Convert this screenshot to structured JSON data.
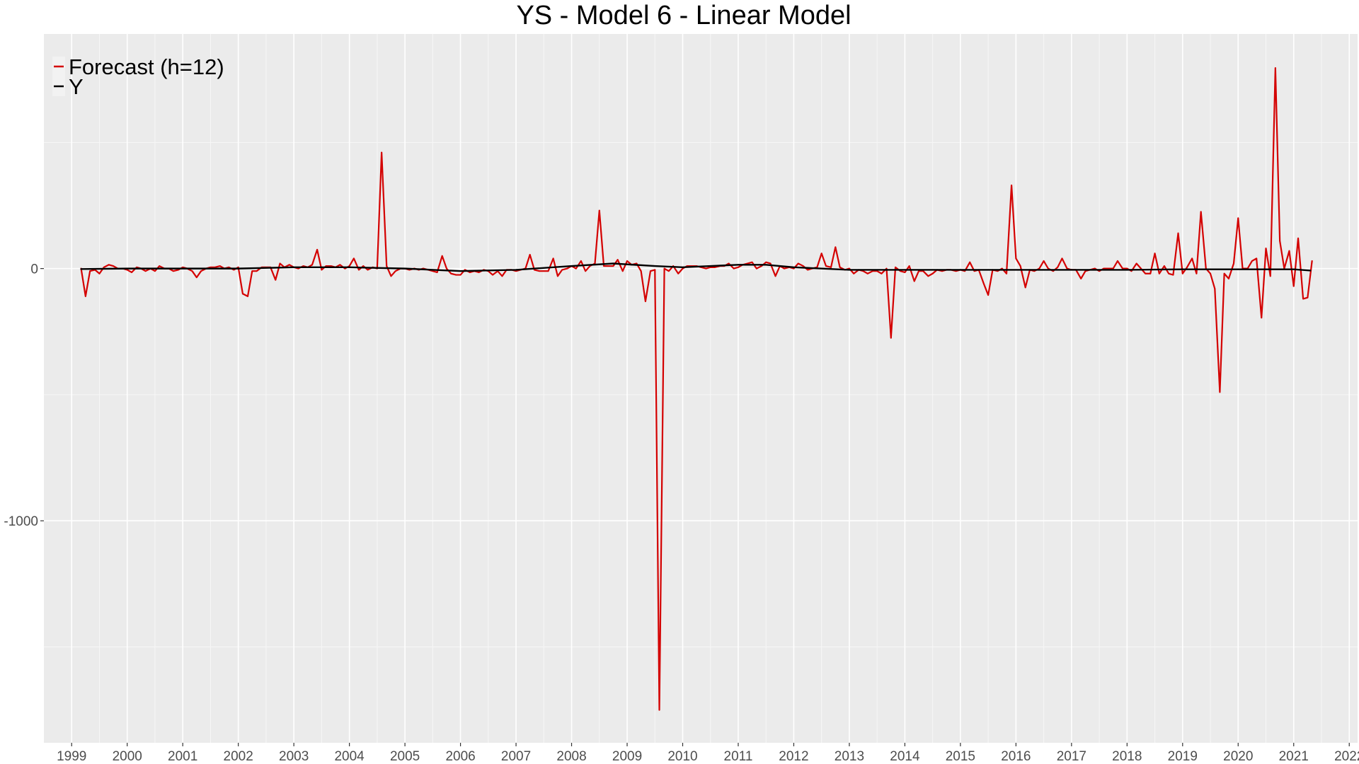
{
  "chart_data": {
    "type": "line",
    "title": "YS - Model 6 - Linear Model",
    "xlabel": "",
    "ylabel": "",
    "xlim": [
      1998.5,
      2022.15
    ],
    "ylim": [
      -1880,
      930
    ],
    "x_ticks": [
      1999,
      2000,
      2001,
      2002,
      2003,
      2004,
      2005,
      2006,
      2007,
      2008,
      2009,
      2010,
      2011,
      2012,
      2013,
      2014,
      2015,
      2016,
      2017,
      2018,
      2019,
      2020,
      2021,
      2022
    ],
    "x_tick_labels": [
      "1999",
      "2000",
      "2001",
      "2002",
      "2003",
      "2004",
      "2005",
      "2006",
      "2007",
      "2008",
      "2009",
      "2010",
      "2011",
      "2012",
      "2013",
      "2014",
      "2015",
      "2016",
      "2017",
      "2018",
      "2019",
      "2020",
      "2021",
      "2022"
    ],
    "y_ticks": [
      0,
      -1000
    ],
    "y_tick_labels": [
      "0",
      "-1000"
    ],
    "y_minor_ticks": [
      500,
      -500,
      -1500
    ],
    "grid": true,
    "background": "#ebebeb",
    "legend": {
      "position": "top-left",
      "entries": [
        {
          "label": "Forecast (h=12)",
          "color": "#d40000"
        },
        {
          "label": "Y",
          "color": "#000000"
        }
      ]
    },
    "series": [
      {
        "name": "Forecast (h=12)",
        "color": "#d40000",
        "points": [
          [
            1999.17,
            0
          ],
          [
            1999.25,
            -110
          ],
          [
            1999.33,
            -10
          ],
          [
            1999.42,
            -5
          ],
          [
            1999.5,
            -20
          ],
          [
            1999.58,
            5
          ],
          [
            1999.67,
            15
          ],
          [
            1999.75,
            10
          ],
          [
            1999.83,
            0
          ],
          [
            1999.92,
            0
          ],
          [
            2000.0,
            -5
          ],
          [
            2000.08,
            -15
          ],
          [
            2000.17,
            5
          ],
          [
            2000.25,
            0
          ],
          [
            2000.33,
            -10
          ],
          [
            2000.42,
            0
          ],
          [
            2000.5,
            -10
          ],
          [
            2000.58,
            10
          ],
          [
            2000.67,
            0
          ],
          [
            2000.75,
            0
          ],
          [
            2000.83,
            -10
          ],
          [
            2000.92,
            -5
          ],
          [
            2001.0,
            5
          ],
          [
            2001.08,
            0
          ],
          [
            2001.17,
            -10
          ],
          [
            2001.25,
            -35
          ],
          [
            2001.33,
            -10
          ],
          [
            2001.42,
            0
          ],
          [
            2001.5,
            5
          ],
          [
            2001.58,
            5
          ],
          [
            2001.67,
            10
          ],
          [
            2001.75,
            0
          ],
          [
            2001.83,
            5
          ],
          [
            2001.92,
            -5
          ],
          [
            2002.0,
            5
          ],
          [
            2002.08,
            -100
          ],
          [
            2002.17,
            -110
          ],
          [
            2002.25,
            -10
          ],
          [
            2002.33,
            -10
          ],
          [
            2002.42,
            5
          ],
          [
            2002.5,
            5
          ],
          [
            2002.58,
            5
          ],
          [
            2002.67,
            -45
          ],
          [
            2002.75,
            20
          ],
          [
            2002.83,
            5
          ],
          [
            2002.92,
            15
          ],
          [
            2003.0,
            5
          ],
          [
            2003.08,
            0
          ],
          [
            2003.17,
            10
          ],
          [
            2003.25,
            5
          ],
          [
            2003.33,
            15
          ],
          [
            2003.42,
            75
          ],
          [
            2003.5,
            -5
          ],
          [
            2003.58,
            10
          ],
          [
            2003.67,
            10
          ],
          [
            2003.75,
            5
          ],
          [
            2003.83,
            15
          ],
          [
            2003.92,
            0
          ],
          [
            2004.0,
            10
          ],
          [
            2004.08,
            40
          ],
          [
            2004.17,
            -5
          ],
          [
            2004.25,
            10
          ],
          [
            2004.33,
            -5
          ],
          [
            2004.42,
            5
          ],
          [
            2004.5,
            0
          ],
          [
            2004.58,
            460
          ],
          [
            2004.67,
            10
          ],
          [
            2004.75,
            -30
          ],
          [
            2004.83,
            -10
          ],
          [
            2004.92,
            0
          ],
          [
            2005.0,
            0
          ],
          [
            2005.08,
            -5
          ],
          [
            2005.17,
            0
          ],
          [
            2005.25,
            -5
          ],
          [
            2005.33,
            0
          ],
          [
            2005.42,
            -5
          ],
          [
            2005.5,
            -10
          ],
          [
            2005.58,
            -15
          ],
          [
            2005.67,
            50
          ],
          [
            2005.75,
            0
          ],
          [
            2005.83,
            -20
          ],
          [
            2005.92,
            -25
          ],
          [
            2006.0,
            -25
          ],
          [
            2006.08,
            -5
          ],
          [
            2006.17,
            -15
          ],
          [
            2006.25,
            -10
          ],
          [
            2006.33,
            -15
          ],
          [
            2006.42,
            -5
          ],
          [
            2006.5,
            -10
          ],
          [
            2006.58,
            -25
          ],
          [
            2006.67,
            -10
          ],
          [
            2006.75,
            -30
          ],
          [
            2006.83,
            -5
          ],
          [
            2006.92,
            -5
          ],
          [
            2007.0,
            -10
          ],
          [
            2007.08,
            -5
          ],
          [
            2007.17,
            0
          ],
          [
            2007.25,
            55
          ],
          [
            2007.33,
            -5
          ],
          [
            2007.42,
            -10
          ],
          [
            2007.5,
            -10
          ],
          [
            2007.58,
            -10
          ],
          [
            2007.67,
            40
          ],
          [
            2007.75,
            -30
          ],
          [
            2007.83,
            -5
          ],
          [
            2007.92,
            0
          ],
          [
            2008.0,
            10
          ],
          [
            2008.08,
            0
          ],
          [
            2008.17,
            30
          ],
          [
            2008.25,
            -10
          ],
          [
            2008.33,
            10
          ],
          [
            2008.42,
            20
          ],
          [
            2008.5,
            230
          ],
          [
            2008.58,
            10
          ],
          [
            2008.67,
            10
          ],
          [
            2008.75,
            10
          ],
          [
            2008.83,
            35
          ],
          [
            2008.92,
            -10
          ],
          [
            2009.0,
            30
          ],
          [
            2009.08,
            15
          ],
          [
            2009.17,
            20
          ],
          [
            2009.25,
            -10
          ],
          [
            2009.33,
            -130
          ],
          [
            2009.42,
            -10
          ],
          [
            2009.5,
            -5
          ],
          [
            2009.58,
            -1750
          ],
          [
            2009.67,
            0
          ],
          [
            2009.75,
            -10
          ],
          [
            2009.83,
            10
          ],
          [
            2009.92,
            -20
          ],
          [
            2010.0,
            0
          ],
          [
            2010.08,
            10
          ],
          [
            2010.17,
            10
          ],
          [
            2010.25,
            10
          ],
          [
            2010.33,
            5
          ],
          [
            2010.42,
            0
          ],
          [
            2010.5,
            5
          ],
          [
            2010.58,
            5
          ],
          [
            2010.67,
            10
          ],
          [
            2010.75,
            10
          ],
          [
            2010.83,
            20
          ],
          [
            2010.92,
            0
          ],
          [
            2011.0,
            5
          ],
          [
            2011.08,
            15
          ],
          [
            2011.17,
            20
          ],
          [
            2011.25,
            25
          ],
          [
            2011.33,
            0
          ],
          [
            2011.42,
            10
          ],
          [
            2011.5,
            25
          ],
          [
            2011.58,
            20
          ],
          [
            2011.67,
            -30
          ],
          [
            2011.75,
            10
          ],
          [
            2011.83,
            0
          ],
          [
            2011.92,
            5
          ],
          [
            2012.0,
            0
          ],
          [
            2012.08,
            20
          ],
          [
            2012.17,
            10
          ],
          [
            2012.25,
            -5
          ],
          [
            2012.33,
            0
          ],
          [
            2012.42,
            5
          ],
          [
            2012.5,
            60
          ],
          [
            2012.58,
            10
          ],
          [
            2012.67,
            5
          ],
          [
            2012.75,
            85
          ],
          [
            2012.83,
            5
          ],
          [
            2012.92,
            -5
          ],
          [
            2013.0,
            0
          ],
          [
            2013.08,
            -20
          ],
          [
            2013.17,
            -5
          ],
          [
            2013.25,
            -10
          ],
          [
            2013.33,
            -20
          ],
          [
            2013.42,
            -10
          ],
          [
            2013.5,
            -10
          ],
          [
            2013.58,
            -20
          ],
          [
            2013.67,
            0
          ],
          [
            2013.75,
            -275
          ],
          [
            2013.83,
            5
          ],
          [
            2013.92,
            -10
          ],
          [
            2014.0,
            -15
          ],
          [
            2014.08,
            10
          ],
          [
            2014.17,
            -50
          ],
          [
            2014.25,
            -10
          ],
          [
            2014.33,
            -10
          ],
          [
            2014.42,
            -30
          ],
          [
            2014.5,
            -20
          ],
          [
            2014.58,
            -5
          ],
          [
            2014.67,
            -10
          ],
          [
            2014.75,
            -5
          ],
          [
            2014.83,
            -5
          ],
          [
            2014.92,
            -10
          ],
          [
            2015.0,
            -5
          ],
          [
            2015.08,
            -10
          ],
          [
            2015.17,
            25
          ],
          [
            2015.25,
            -10
          ],
          [
            2015.33,
            -5
          ],
          [
            2015.42,
            -60
          ],
          [
            2015.5,
            -105
          ],
          [
            2015.58,
            -5
          ],
          [
            2015.67,
            -10
          ],
          [
            2015.75,
            0
          ],
          [
            2015.83,
            -20
          ],
          [
            2015.92,
            330
          ],
          [
            2016.0,
            40
          ],
          [
            2016.08,
            10
          ],
          [
            2016.17,
            -75
          ],
          [
            2016.25,
            -5
          ],
          [
            2016.33,
            -10
          ],
          [
            2016.42,
            0
          ],
          [
            2016.5,
            30
          ],
          [
            2016.58,
            0
          ],
          [
            2016.67,
            -10
          ],
          [
            2016.75,
            5
          ],
          [
            2016.83,
            40
          ],
          [
            2016.92,
            0
          ],
          [
            2017.0,
            -5
          ],
          [
            2017.08,
            -5
          ],
          [
            2017.17,
            -40
          ],
          [
            2017.25,
            -10
          ],
          [
            2017.33,
            -5
          ],
          [
            2017.42,
            0
          ],
          [
            2017.5,
            -10
          ],
          [
            2017.58,
            0
          ],
          [
            2017.67,
            0
          ],
          [
            2017.75,
            0
          ],
          [
            2017.83,
            30
          ],
          [
            2017.92,
            0
          ],
          [
            2018.0,
            0
          ],
          [
            2018.08,
            -10
          ],
          [
            2018.17,
            20
          ],
          [
            2018.25,
            0
          ],
          [
            2018.33,
            -20
          ],
          [
            2018.42,
            -20
          ],
          [
            2018.5,
            60
          ],
          [
            2018.58,
            -20
          ],
          [
            2018.67,
            10
          ],
          [
            2018.75,
            -20
          ],
          [
            2018.83,
            -25
          ],
          [
            2018.92,
            140
          ],
          [
            2019.0,
            -20
          ],
          [
            2019.08,
            5
          ],
          [
            2019.17,
            40
          ],
          [
            2019.25,
            -20
          ],
          [
            2019.33,
            225
          ],
          [
            2019.42,
            0
          ],
          [
            2019.5,
            -20
          ],
          [
            2019.58,
            -80
          ],
          [
            2019.67,
            -490
          ],
          [
            2019.75,
            -20
          ],
          [
            2019.83,
            -40
          ],
          [
            2019.92,
            20
          ],
          [
            2020.0,
            200
          ],
          [
            2020.08,
            0
          ],
          [
            2020.17,
            0
          ],
          [
            2020.25,
            30
          ],
          [
            2020.33,
            40
          ],
          [
            2020.42,
            -195
          ],
          [
            2020.5,
            80
          ],
          [
            2020.58,
            -30
          ],
          [
            2020.67,
            795
          ],
          [
            2020.75,
            110
          ],
          [
            2020.83,
            0
          ],
          [
            2020.92,
            70
          ],
          [
            2021.0,
            -70
          ],
          [
            2021.08,
            120
          ],
          [
            2021.17,
            -120
          ],
          [
            2021.25,
            -115
          ],
          [
            2021.33,
            30
          ]
        ]
      },
      {
        "name": "Y",
        "color": "#000000",
        "points": [
          [
            1999.17,
            -2
          ],
          [
            2000.0,
            0
          ],
          [
            2001.0,
            0
          ],
          [
            2002.0,
            0
          ],
          [
            2003.0,
            5
          ],
          [
            2004.0,
            5
          ],
          [
            2005.0,
            0
          ],
          [
            2006.0,
            -10
          ],
          [
            2007.0,
            -5
          ],
          [
            2008.0,
            10
          ],
          [
            2008.75,
            20
          ],
          [
            2009.5,
            10
          ],
          [
            2010.0,
            5
          ],
          [
            2010.5,
            10
          ],
          [
            2011.0,
            15
          ],
          [
            2011.5,
            15
          ],
          [
            2012.0,
            5
          ],
          [
            2013.0,
            -5
          ],
          [
            2014.0,
            -5
          ],
          [
            2015.0,
            -5
          ],
          [
            2016.0,
            -5
          ],
          [
            2017.0,
            -5
          ],
          [
            2018.0,
            -5
          ],
          [
            2019.0,
            -3
          ],
          [
            2020.0,
            -3
          ],
          [
            2021.0,
            -3
          ],
          [
            2021.3,
            -8
          ]
        ]
      }
    ]
  }
}
